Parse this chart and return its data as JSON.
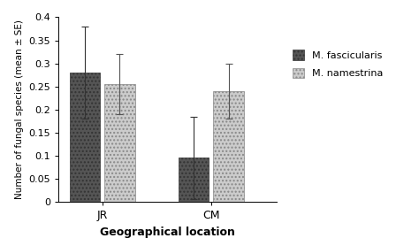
{
  "groups": [
    "JR",
    "CM"
  ],
  "species": [
    "M. fascicularis",
    "M. namestrina"
  ],
  "values": {
    "JR": [
      0.28,
      0.255
    ],
    "CM": [
      0.095,
      0.24
    ]
  },
  "errors": {
    "JR": [
      0.1,
      0.065
    ],
    "CM": [
      0.09,
      0.06
    ]
  },
  "ylim": [
    0,
    0.4
  ],
  "yticks": [
    0,
    0.05,
    0.1,
    0.15,
    0.2,
    0.25,
    0.3,
    0.35,
    0.4
  ],
  "xlabel": "Geographical location",
  "ylabel": "Number of fungal species (mean ± SE)",
  "bar_width": 0.28,
  "hatch_fascicularis": "....",
  "hatch_namestrina": "....",
  "facecolor_fascicularis": "#555555",
  "facecolor_namestrina": "#cccccc",
  "legend_labels": [
    "M. fascicularis",
    "M. namestrina"
  ],
  "background_color": "#ffffff",
  "edgecolor": "#555555",
  "title": ""
}
